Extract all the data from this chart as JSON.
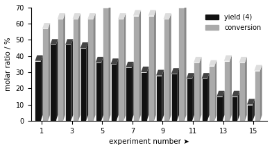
{
  "experiments": [
    1,
    2,
    3,
    4,
    5,
    6,
    7,
    8,
    9,
    10,
    11,
    12,
    13,
    14,
    15
  ],
  "yield_values": [
    37,
    47,
    47,
    45,
    36,
    35,
    33,
    30,
    28,
    29,
    26,
    26,
    15,
    15,
    10
  ],
  "conversion_values": [
    57,
    63,
    63,
    63,
    70,
    63,
    65,
    65,
    63,
    70,
    36,
    34,
    37,
    36,
    31
  ],
  "yield_color": "#111111",
  "conversion_color": "#aaaaaa",
  "ylabel": "molar ratio / %",
  "xlabel": "experiment number ➤",
  "ylim": [
    0,
    70
  ],
  "yticks": [
    0,
    10,
    20,
    30,
    40,
    50,
    60,
    70
  ],
  "xticks": [
    1,
    3,
    5,
    7,
    9,
    11,
    13,
    15
  ],
  "legend_yield": "yield (4)",
  "legend_conversion": "conversion",
  "bar_width": 0.38,
  "edge_color": "#ffffff",
  "background_color": "#ffffff"
}
